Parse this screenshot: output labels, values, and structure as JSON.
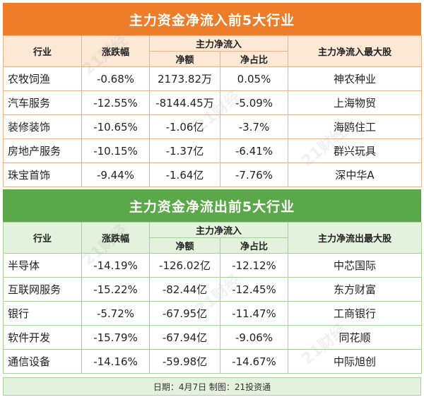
{
  "inflow": {
    "title": "主力资金净流入前5大行业",
    "headers": {
      "industry": "行业",
      "change": "涨跌幅",
      "net_flow": "主力净流入",
      "amount": "净额",
      "ratio": "净占比",
      "top_stock": "主力净流入最大股"
    },
    "rows": [
      {
        "industry": "农牧饲渔",
        "change": "-0.68%",
        "amount": "2173.82万",
        "ratio": "0.05%",
        "stock": "神农种业"
      },
      {
        "industry": "汽车服务",
        "change": "-12.55%",
        "amount": "-8144.45万",
        "ratio": "-5.09%",
        "stock": "上海物贸"
      },
      {
        "industry": "装修装饰",
        "change": "-10.65%",
        "amount": "-1.06亿",
        "ratio": "-3.7%",
        "stock": "海鸥住工"
      },
      {
        "industry": "房地产服务",
        "change": "-10.15%",
        "amount": "-1.37亿",
        "ratio": "-6.41%",
        "stock": "群兴玩具"
      },
      {
        "industry": "珠宝首饰",
        "change": "-9.44%",
        "amount": "-1.64亿",
        "ratio": "-7.76%",
        "stock": "深中华A"
      }
    ]
  },
  "outflow": {
    "title": "主力资金净流出前5大行业",
    "headers": {
      "industry": "行业",
      "change": "涨跌幅",
      "net_flow": "主力净流入",
      "amount": "净额",
      "ratio": "净占比",
      "top_stock": "主力净流出最大股"
    },
    "rows": [
      {
        "industry": "半导体",
        "change": "-14.19%",
        "amount": "-126.02亿",
        "ratio": "-12.12%",
        "stock": "中芯国际"
      },
      {
        "industry": "互联网服务",
        "change": "-15.22%",
        "amount": "-82.44亿",
        "ratio": "-12.45%",
        "stock": "东方财富"
      },
      {
        "industry": "银行",
        "change": "-5.72%",
        "amount": "-67.95亿",
        "ratio": "-11.47%",
        "stock": "工商银行"
      },
      {
        "industry": "软件开发",
        "change": "-15.79%",
        "amount": "-67.94亿",
        "ratio": "-9.06%",
        "stock": "同花顺"
      },
      {
        "industry": "通信设备",
        "change": "-14.16%",
        "amount": "-59.98亿",
        "ratio": "-14.67%",
        "stock": "中际旭创"
      }
    ]
  },
  "footer": "日期：4月7日 制图：21投资通",
  "watermark": "21财经",
  "colors": {
    "inflow_banner": "#ee7d2a",
    "outflow_banner": "#5ba84a"
  }
}
